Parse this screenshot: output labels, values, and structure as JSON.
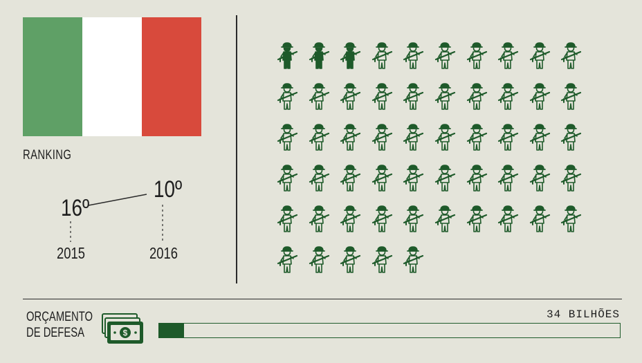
{
  "flag": {
    "colors": [
      "#5fa066",
      "#ffffff",
      "#d84a3c"
    ]
  },
  "ranking": {
    "label": "RANKING",
    "rank_2015": "16º",
    "rank_2016": "10º",
    "year_2015": "2015",
    "year_2016": "2016"
  },
  "soldiers": {
    "icon": "soldier-with-rifle-icon",
    "total": 55,
    "filled": 3,
    "per_row": 10,
    "filled_color": "#1e5a2a",
    "outline_color": "#1e5a2a"
  },
  "budget": {
    "label_line1": "ORÇAMENTO",
    "label_line2": "DE DEFESA",
    "icon": "money-stack-icon",
    "value_text": "34 BILHÕES",
    "fill_fraction": 0.054,
    "bar_color": "#1e5a2a"
  },
  "chart_data": {
    "type": "bar",
    "categories": [
      "2015",
      "2016"
    ],
    "values": [
      16,
      10
    ],
    "title": "",
    "xlabel": "",
    "ylabel": "RANKING",
    "budget_value": "34 BILHÕES",
    "budget_fraction": 0.054,
    "soldier_icons_total": 55,
    "soldier_icons_filled": 3
  }
}
